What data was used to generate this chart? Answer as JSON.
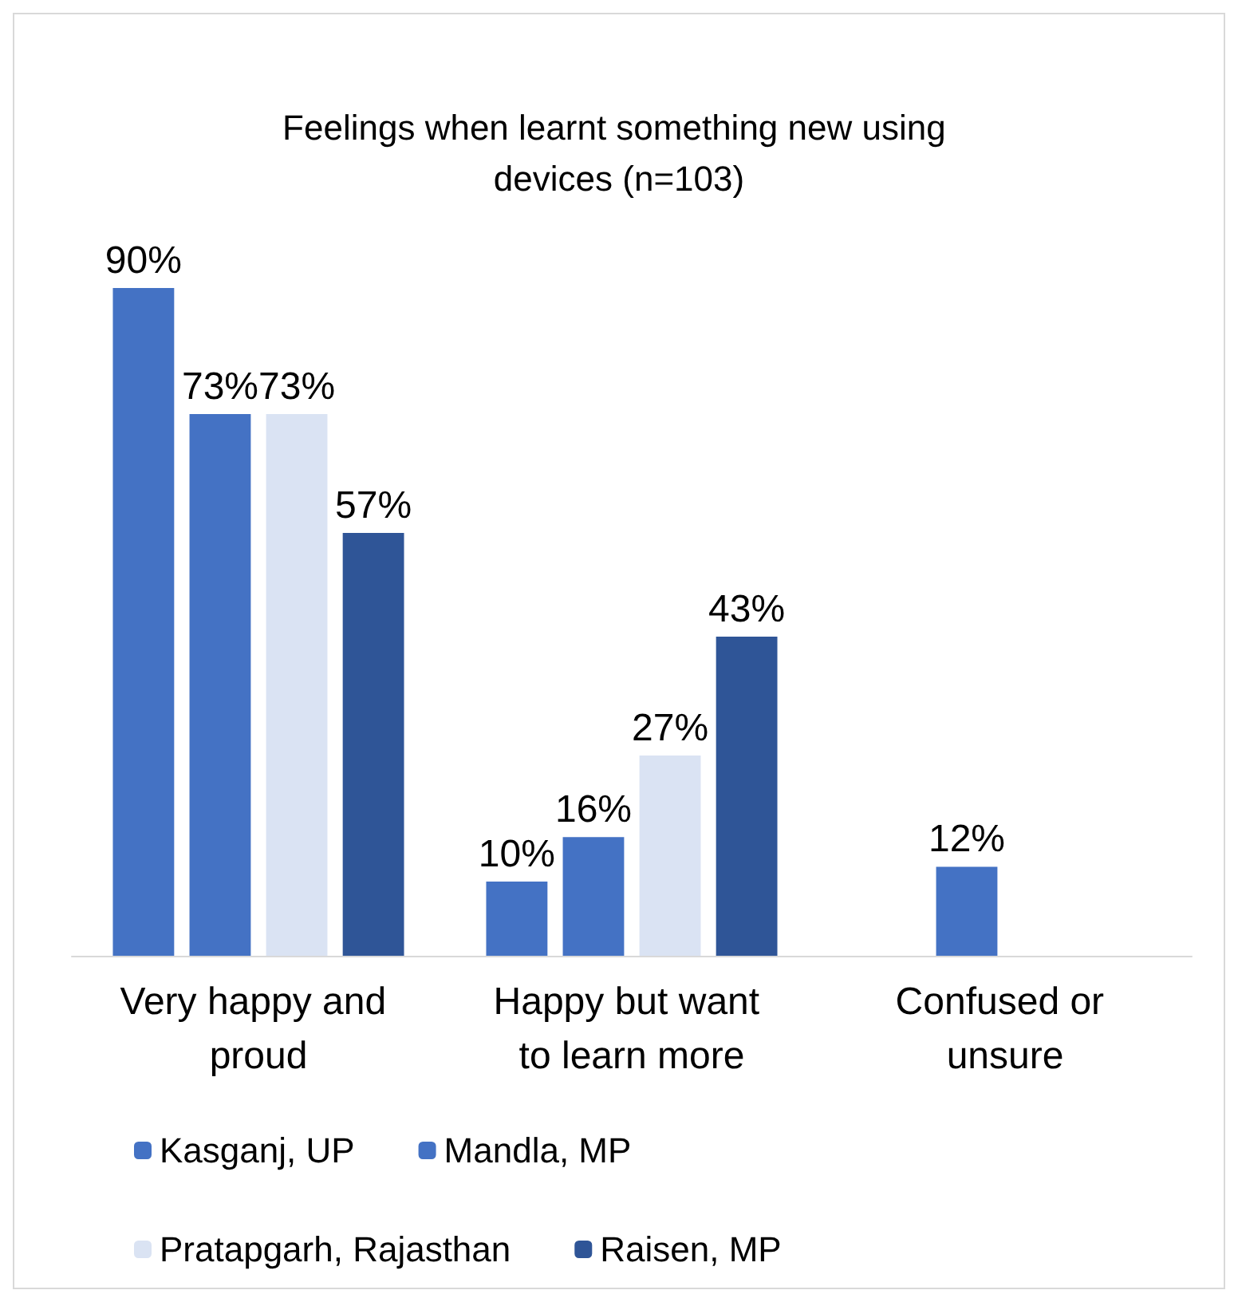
{
  "chart_data": {
    "type": "bar",
    "title": "Feelings when learnt something new using devices (n=103)",
    "categories": [
      "Very happy and proud",
      "Happy but want to learn more",
      "Confused or unsure"
    ],
    "series": [
      {
        "name": "Kasganj, UP",
        "color": "#4472c4",
        "values": [
          90,
          10,
          null
        ],
        "value_labels": [
          "90%",
          "10%",
          null
        ]
      },
      {
        "name": "Mandla, MP",
        "color": "#4472c4",
        "values": [
          73,
          16,
          12
        ],
        "value_labels": [
          "73%",
          "16%",
          "12%"
        ]
      },
      {
        "name": "Pratapgarh, Rajasthan",
        "color": "#dae3f3",
        "values": [
          73,
          27,
          null
        ],
        "value_labels": [
          "73%",
          "27%",
          null
        ]
      },
      {
        "name": "Raisen, MP",
        "color": "#2f5597",
        "values": [
          57,
          43,
          null
        ],
        "value_labels": [
          "57%",
          "43%",
          null
        ]
      }
    ],
    "legend": "bottom"
  }
}
